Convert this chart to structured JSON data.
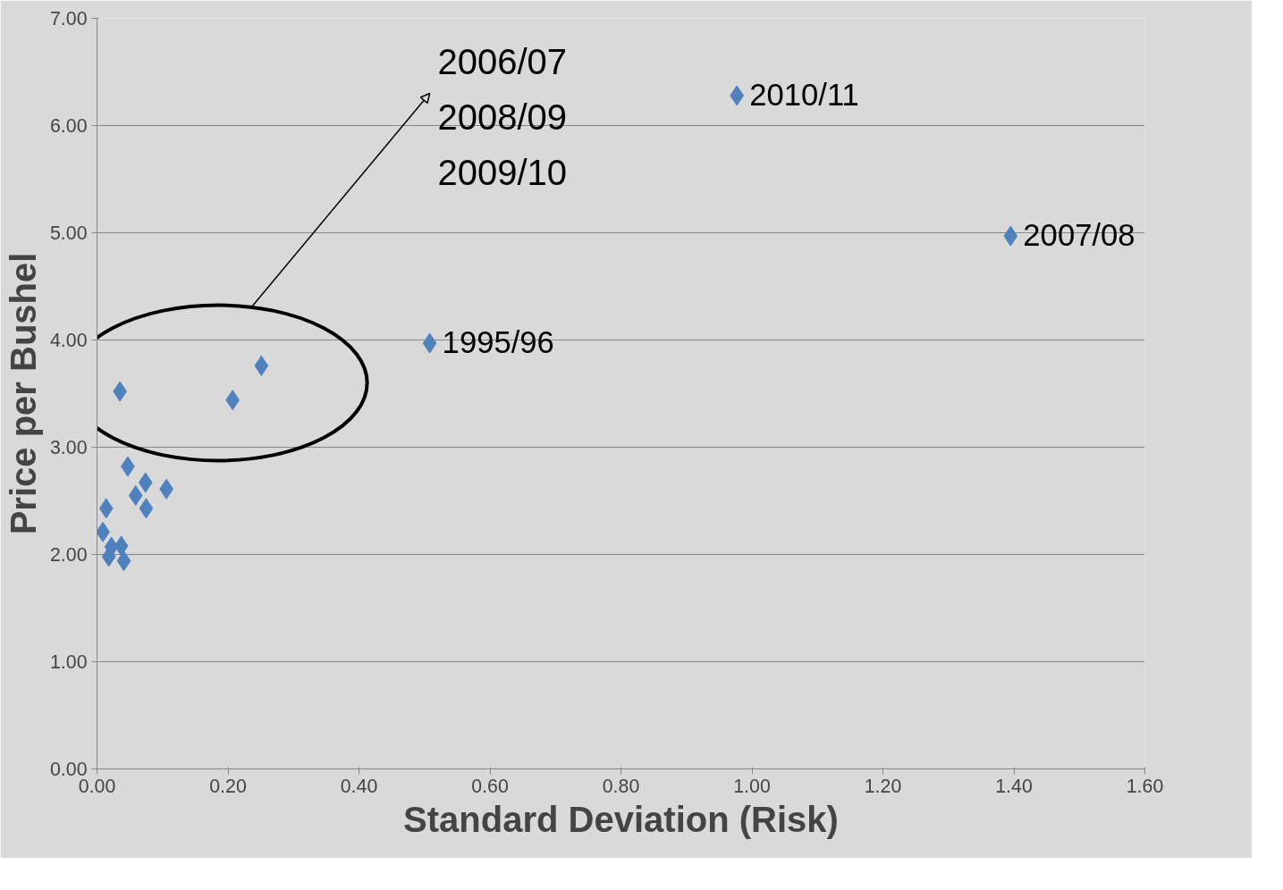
{
  "chart_data": {
    "type": "scatter",
    "xlabel": "Standard Deviation (Risk)",
    "ylabel": "Price per Bushel",
    "x": [
      0.035,
      0.207,
      0.251,
      0.047,
      0.074,
      0.106,
      0.059,
      0.075,
      0.014,
      0.009,
      0.022,
      0.037,
      0.018,
      0.041,
      0.508,
      0.977,
      1.395
    ],
    "series": [
      {
        "color": "#4f81bd",
        "values": [
          3.52,
          3.44,
          3.76,
          2.82,
          2.67,
          2.61,
          2.55,
          2.43,
          2.43,
          2.21,
          2.07,
          2.08,
          1.98,
          1.94,
          3.97,
          6.28,
          4.97
        ]
      }
    ],
    "marker": "diamond",
    "grid": "y",
    "xlim": [
      0,
      1.6
    ],
    "ylim": [
      0,
      7
    ],
    "xticks": [
      {
        "value": 0,
        "label": "0.00"
      },
      {
        "value": 0.2,
        "label": "0.20"
      },
      {
        "value": 0.4,
        "label": "0.40"
      },
      {
        "value": 0.6,
        "label": "0.60"
      },
      {
        "value": 0.8,
        "label": "0.80"
      },
      {
        "value": 1.0,
        "label": "1.00"
      },
      {
        "value": 1.2,
        "label": "1.20"
      },
      {
        "value": 1.4,
        "label": "1.40"
      },
      {
        "value": 1.6,
        "label": "1.60"
      }
    ],
    "yticks": [
      {
        "value": 0,
        "label": "0.00"
      },
      {
        "value": 1,
        "label": "1.00"
      },
      {
        "value": 2,
        "label": "2.00"
      },
      {
        "value": 3,
        "label": "3.00"
      },
      {
        "value": 4,
        "label": "4.00"
      },
      {
        "value": 5,
        "label": "5.00"
      },
      {
        "value": 6,
        "label": "6.00"
      },
      {
        "value": 7,
        "label": "7.00"
      }
    ],
    "annotations": [
      {
        "text": "1995/96",
        "x": 0.508,
        "y": 3.97
      },
      {
        "text": "2010/11",
        "x": 0.977,
        "y": 6.28
      },
      {
        "text": "2007/08",
        "x": 1.395,
        "y": 4.97
      },
      "2006/07",
      "2008/09",
      "2009/10"
    ]
  }
}
